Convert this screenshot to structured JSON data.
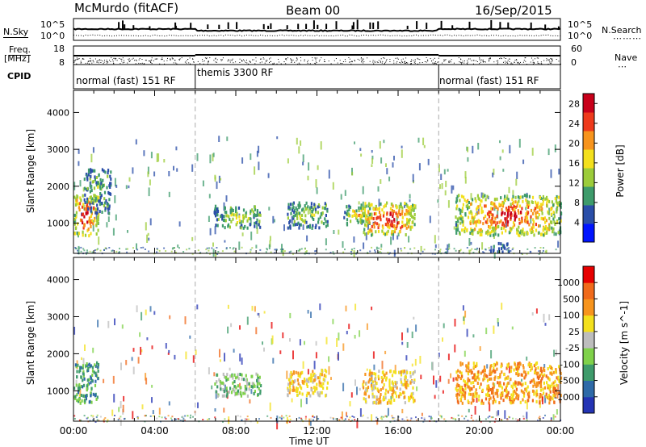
{
  "header": {
    "station": "McMurdo (fitACF)",
    "beam": "Beam 00",
    "date": "16/Sep/2015"
  },
  "panel_labels": {
    "nsky": "N.Sky",
    "nsearch": "N.Search",
    "freq_line1": "Freq.",
    "freq_line2": "[MHz]",
    "nave": "Nave",
    "cpid": "CPID"
  },
  "noise_axis": {
    "ticks": [
      "10^5",
      "10^0"
    ]
  },
  "freq_axis": {
    "ticks": [
      "18",
      "8"
    ]
  },
  "nave_axis": {
    "ticks": [
      "60",
      "0"
    ]
  },
  "cpid_segments": [
    {
      "label": "normal (fast) 151 RF",
      "start_hour": 0,
      "end_hour": 6
    },
    {
      "label": "themis 3300 RF",
      "start_hour": 6,
      "end_hour": 18
    },
    {
      "label": "normal (fast) 151 RF",
      "start_hour": 18,
      "end_hour": 24
    }
  ],
  "chart_data": [
    {
      "type": "heatmap",
      "ylabel": "Slant Range [km]",
      "y_ticks": [
        "1000",
        "2000",
        "3000",
        "4000"
      ],
      "ylim": [
        180,
        4600
      ],
      "xlim": [
        0,
        24
      ],
      "colorbar": {
        "label": "Power [dB]",
        "ticks": [
          "4",
          "8",
          "12",
          "16",
          "20",
          "24",
          "28"
        ],
        "range": [
          0,
          30
        ],
        "colors": [
          "#0014ff",
          "#2a4ea8",
          "#3e9b6b",
          "#9ccc3a",
          "#f3e01d",
          "#f7941d",
          "#ee3a1c",
          "#c8001a"
        ]
      },
      "echo_regions": [
        {
          "t0": 0.0,
          "t1": 1.2,
          "r0": 700,
          "r1": 1800,
          "level": 0.85
        },
        {
          "t0": 0.5,
          "t1": 1.8,
          "r0": 1300,
          "r1": 2500,
          "level": 0.35
        },
        {
          "t0": 6.9,
          "t1": 9.2,
          "r0": 900,
          "r1": 1500,
          "level": 0.45
        },
        {
          "t0": 10.5,
          "t1": 12.5,
          "r0": 900,
          "r1": 1600,
          "level": 0.4
        },
        {
          "t0": 13.3,
          "t1": 14.8,
          "r0": 1000,
          "r1": 1550,
          "level": 0.55
        },
        {
          "t0": 14.2,
          "t1": 16.8,
          "r0": 700,
          "r1": 1600,
          "level": 0.85
        },
        {
          "t0": 18.8,
          "t1": 24.0,
          "r0": 700,
          "r1": 1800,
          "level": 0.8
        },
        {
          "t0": 20.5,
          "t1": 21.5,
          "r0": 250,
          "r1": 500,
          "level": 0.25
        }
      ]
    },
    {
      "type": "heatmap",
      "ylabel": "Slant Range [km]",
      "xlabel": "Time UT",
      "y_ticks": [
        "1000",
        "2000",
        "3000",
        "4000"
      ],
      "x_ticks": [
        "00:00",
        "04:00",
        "08:00",
        "12:00",
        "16:00",
        "20:00",
        "00:00"
      ],
      "ylim": [
        180,
        4600
      ],
      "xlim": [
        0,
        24
      ],
      "colorbar": {
        "label": "Velocity [m s^-1]",
        "ticks": [
          "1000",
          "500",
          "100",
          "25",
          "-25",
          "-100",
          "-500",
          "-1000"
        ],
        "colors": [
          "#2434b4",
          "#2e6aa8",
          "#3e9b6b",
          "#7fd14a",
          "#bdbdbd",
          "#f3e01d",
          "#f7941d",
          "#f06a1b",
          "#e60000"
        ]
      },
      "echo_regions": [
        {
          "t0": 0.0,
          "t1": 1.2,
          "r0": 700,
          "r1": 1800,
          "velocity": "100"
        },
        {
          "t0": 6.9,
          "t1": 9.2,
          "r0": 900,
          "r1": 1500,
          "velocity": "25"
        },
        {
          "t0": 10.5,
          "t1": 12.5,
          "r0": 900,
          "r1": 1600,
          "velocity": "-100"
        },
        {
          "t0": 14.2,
          "t1": 16.8,
          "r0": 700,
          "r1": 1600,
          "velocity": "-100"
        },
        {
          "t0": 18.8,
          "t1": 24.0,
          "r0": 700,
          "r1": 1800,
          "velocity": "-500"
        }
      ]
    }
  ]
}
